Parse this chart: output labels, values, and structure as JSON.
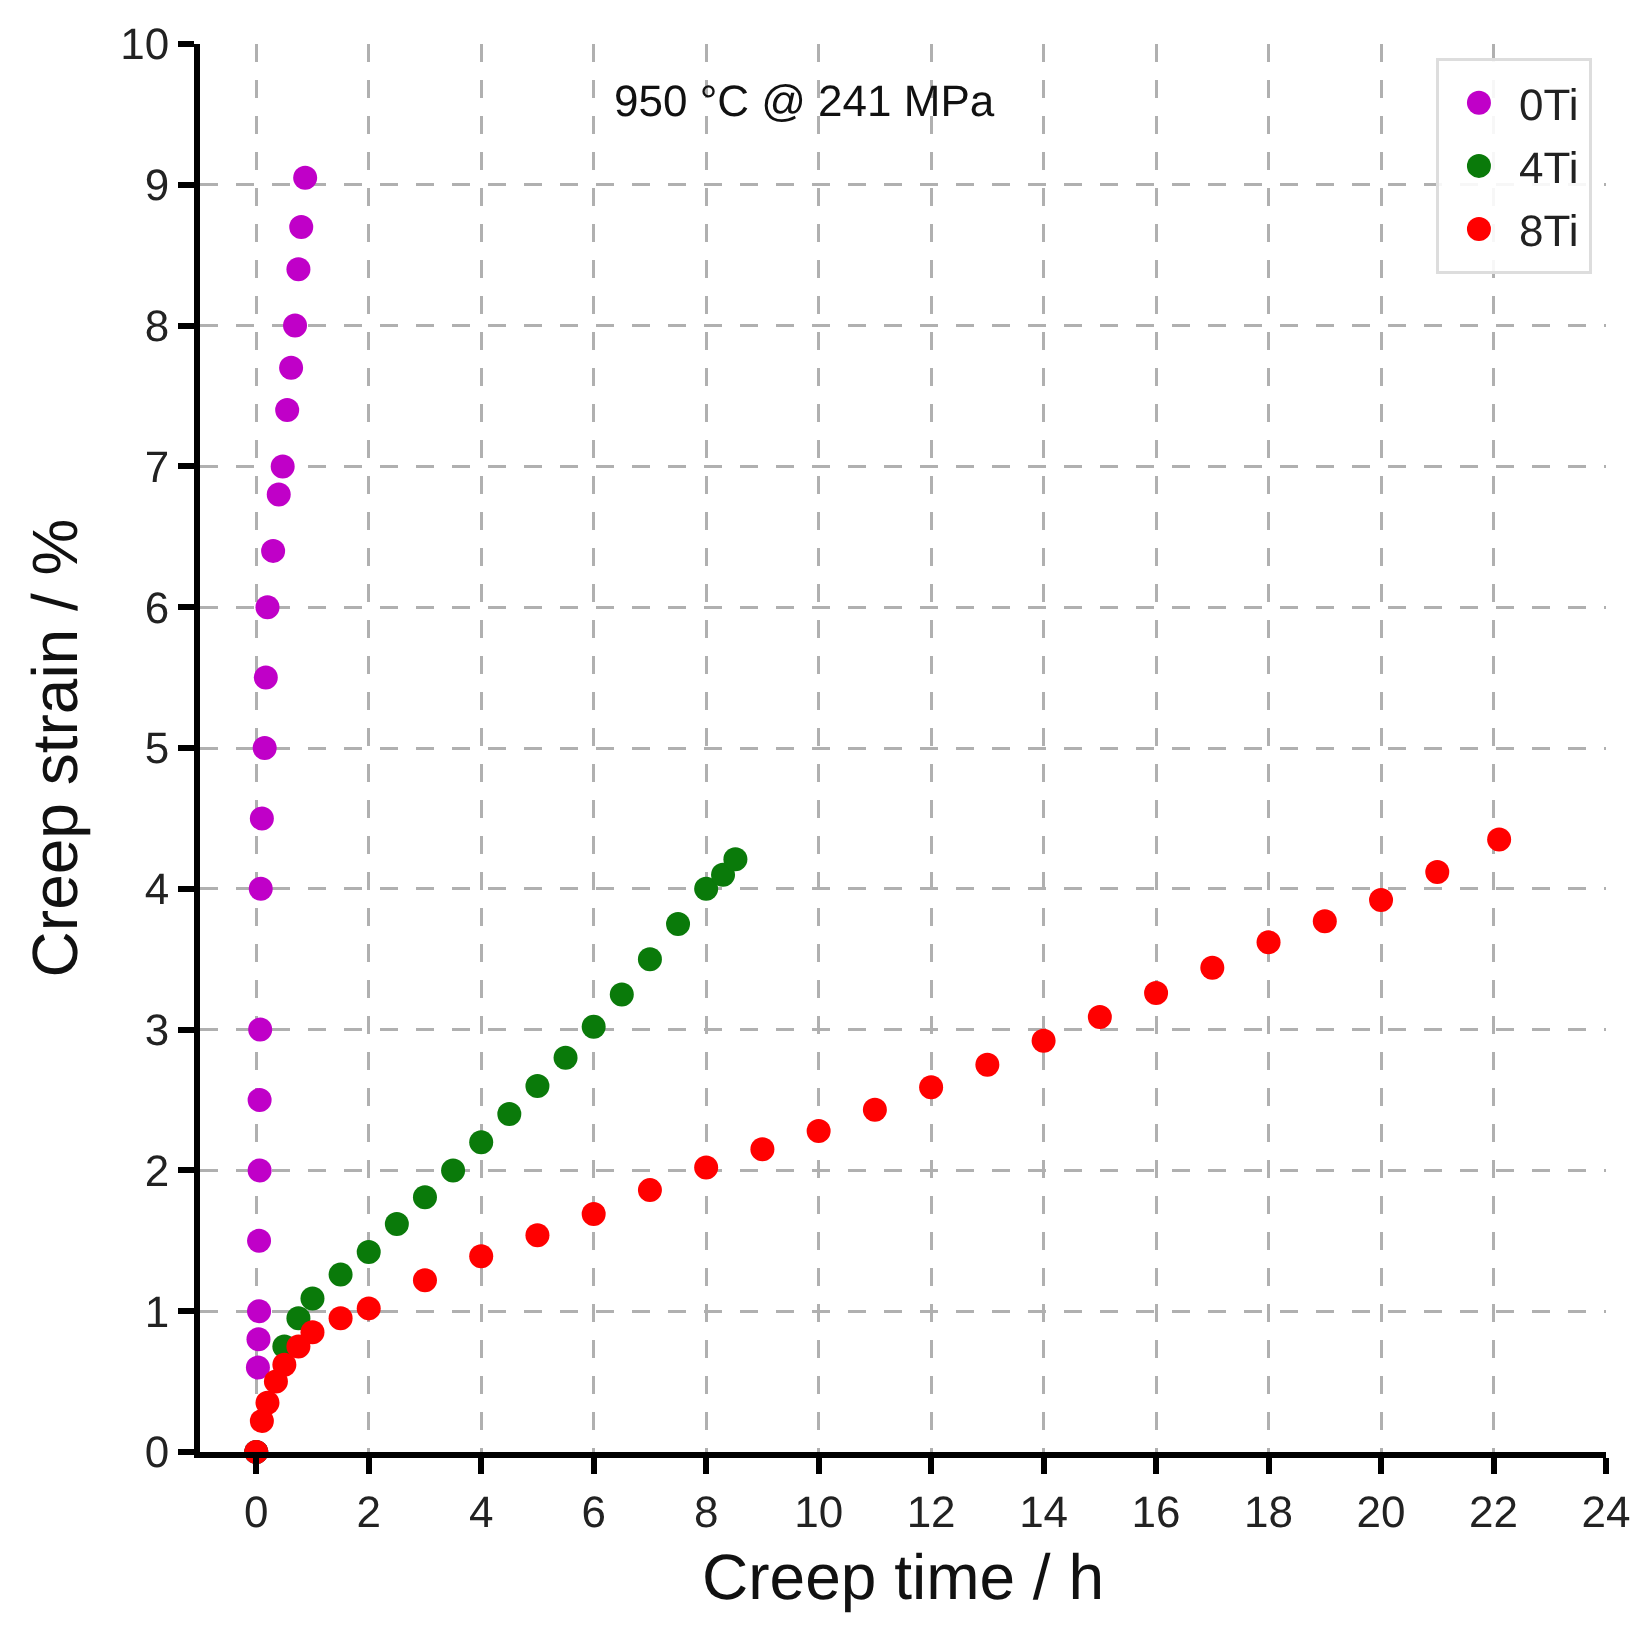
{
  "chart_data": {
    "type": "scatter",
    "xlabel": "Creep time / h",
    "ylabel": "Creep strain / %",
    "annotations": [
      "950 °C @ 241 MPa"
    ],
    "xlim": [
      -1,
      24
    ],
    "xticks": [
      0,
      2,
      4,
      6,
      8,
      10,
      12,
      14,
      16,
      18,
      20,
      22,
      24
    ],
    "ylim": [
      0,
      10
    ],
    "yticks": [
      0,
      1,
      2,
      3,
      4,
      5,
      6,
      7,
      8,
      9,
      10
    ],
    "grid": true,
    "legend": "top right",
    "marker": "circle",
    "series": [
      {
        "name": "0Ti",
        "color": "#c000c8",
        "x": [
          0,
          0.03,
          0.04,
          0.05,
          0.05,
          0.06,
          0.06,
          0.07,
          0.08,
          0.1,
          0.15,
          0.17,
          0.2,
          0.3,
          0.4,
          0.47,
          0.55,
          0.62,
          0.69,
          0.75,
          0.8,
          0.87
        ],
        "values": [
          0,
          0.6,
          0.8,
          1,
          1.5,
          2,
          2.5,
          3,
          4,
          4.5,
          5,
          5.5,
          6,
          6.4,
          6.8,
          7,
          7.4,
          7.7,
          8,
          8.4,
          8.7,
          9.05
        ]
      },
      {
        "name": "4Ti",
        "color": "#0a7a0a",
        "x": [
          0,
          0.1,
          0.2,
          0.35,
          0.5,
          0.75,
          1,
          1.5,
          2,
          2.5,
          3,
          3.5,
          4,
          4.5,
          5,
          5.5,
          6,
          6.5,
          7,
          7.5,
          8,
          8.3,
          8.52
        ],
        "values": [
          0,
          null,
          null,
          null,
          0.75,
          0.95,
          1.09,
          1.26,
          1.42,
          1.62,
          1.81,
          2.0,
          2.2,
          2.4,
          2.6,
          2.8,
          3.02,
          3.25,
          3.5,
          3.75,
          4.0,
          4.1,
          4.21
        ]
      },
      {
        "name": "8Ti",
        "color": "#ff0000",
        "x": [
          0,
          0.1,
          0.2,
          0.35,
          0.5,
          0.75,
          1,
          1.5,
          2,
          3,
          4,
          5,
          6,
          7,
          8,
          9,
          10,
          11,
          12,
          13,
          14,
          15,
          16,
          17,
          18,
          19,
          20,
          21,
          22.1
        ],
        "values": [
          0,
          0.22,
          0.35,
          0.5,
          0.62,
          0.75,
          0.85,
          0.95,
          1.02,
          1.22,
          1.39,
          1.54,
          1.69,
          1.86,
          2.02,
          2.15,
          2.28,
          2.43,
          2.59,
          2.75,
          2.92,
          3.09,
          3.26,
          3.44,
          3.62,
          3.77,
          3.92,
          4.12,
          4.35
        ]
      }
    ]
  }
}
